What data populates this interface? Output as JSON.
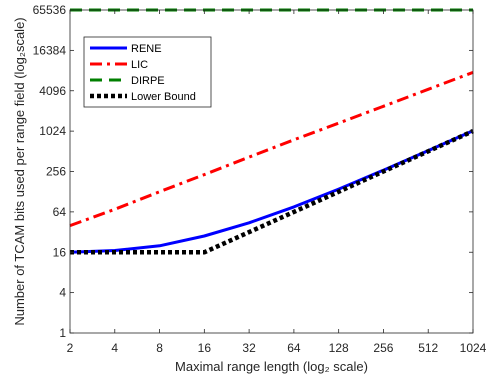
{
  "chart_data": {
    "type": "line",
    "xlabel": "Maximal range length (log₂ scale)",
    "ylabel": "Number of TCAM bits used per range field (log₂scale)",
    "x": [
      2,
      4,
      8,
      16,
      32,
      64,
      128,
      256,
      512,
      1024
    ],
    "x_tick_labels": [
      "2",
      "4",
      "8",
      "16",
      "32",
      "64",
      "128",
      "256",
      "512",
      "1024"
    ],
    "y_ticks": [
      1,
      4,
      16,
      64,
      256,
      1024,
      4096,
      16384,
      65536
    ],
    "y_tick_labels": [
      "1",
      "4",
      "16",
      "64",
      "256",
      "1024",
      "4096",
      "16384",
      "65536"
    ],
    "xlim": [
      2,
      1024
    ],
    "ylim": [
      1,
      65536
    ],
    "xscale": "log2",
    "yscale": "log2",
    "grid": false,
    "legend_position": "top-left",
    "series": [
      {
        "name": "RENE",
        "color": "#0000ff",
        "style": "solid",
        "values": [
          16,
          17,
          20,
          28,
          44,
          76,
          140,
          268,
          524,
          1036
        ]
      },
      {
        "name": "LIC",
        "color": "#ff0000",
        "style": "dash-dot",
        "values": [
          40,
          70,
          128,
          230,
          420,
          760,
          1350,
          2400,
          4300,
          7700
        ]
      },
      {
        "name": "DIRPE",
        "color": "#007f00",
        "style": "dashed",
        "values": [
          65536,
          65536,
          65536,
          65536,
          65536,
          65536,
          65536,
          65536,
          65536,
          65536
        ]
      },
      {
        "name": "Lower Bound",
        "color": "#000000",
        "style": "dotted",
        "values": [
          16,
          16,
          16,
          16,
          32,
          64,
          128,
          256,
          512,
          1024
        ]
      }
    ]
  }
}
